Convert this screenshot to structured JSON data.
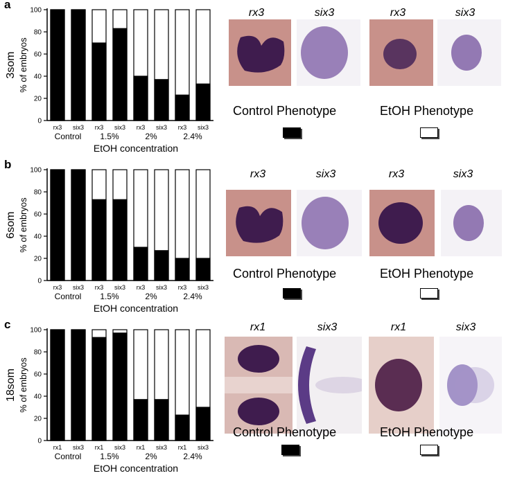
{
  "panels": [
    {
      "letter": "a",
      "stage": "3som",
      "chart_data": {
        "type": "bar",
        "stacked": true,
        "categories": [
          "rx3",
          "six3",
          "rx3",
          "six3",
          "rx3",
          "six3",
          "rx3",
          "six3"
        ],
        "groups": [
          "Control",
          "1.5%",
          "2%",
          "2.4%"
        ],
        "series": [
          {
            "name": "Control Phenotype",
            "color": "#000000",
            "values": [
              100,
              100,
              70,
              83,
              40,
              37,
              23,
              33
            ]
          },
          {
            "name": "EtOH Phenotype",
            "color": "#ffffff",
            "values": [
              0,
              0,
              30,
              17,
              60,
              63,
              77,
              67
            ]
          }
        ],
        "ylabel": "% of embryos",
        "xlabel": "EtOH concentration",
        "ylim": [
          0,
          100
        ],
        "yticks": [
          0,
          20,
          40,
          60,
          80,
          100
        ]
      },
      "images": {
        "control": [
          {
            "gene": "rx3",
            "kind": "rx-heart"
          },
          {
            "gene": "six3",
            "kind": "six3-oval"
          }
        ],
        "etoh": [
          {
            "gene": "rx3",
            "kind": "rx-small"
          },
          {
            "gene": "six3",
            "kind": "six3-small"
          }
        ]
      },
      "phenotypes": {
        "control": "Control Phenotype",
        "etoh": "EtOH Phenotype"
      }
    },
    {
      "letter": "b",
      "stage": "6som",
      "chart_data": {
        "type": "bar",
        "stacked": true,
        "categories": [
          "rx3",
          "six3",
          "rx3",
          "six3",
          "rx3",
          "six3",
          "rx3",
          "six3"
        ],
        "groups": [
          "Control",
          "1.5%",
          "2%",
          "2.4%"
        ],
        "series": [
          {
            "name": "Control Phenotype",
            "color": "#000000",
            "values": [
              100,
              100,
              73,
              73,
              30,
              27,
              20,
              20
            ]
          },
          {
            "name": "EtOH Phenotype",
            "color": "#ffffff",
            "values": [
              0,
              0,
              27,
              27,
              70,
              73,
              80,
              80
            ]
          }
        ],
        "ylabel": "% of embryos",
        "xlabel": "EtOH concentration",
        "ylim": [
          0,
          100
        ],
        "yticks": [
          0,
          20,
          40,
          60,
          80,
          100
        ]
      },
      "images": {
        "control": [
          {
            "gene": "rx3",
            "kind": "rx-heart"
          },
          {
            "gene": "six3",
            "kind": "six3-oval"
          }
        ],
        "etoh": [
          {
            "gene": "rx3",
            "kind": "rx-round"
          },
          {
            "gene": "six3",
            "kind": "six3-small"
          }
        ]
      },
      "phenotypes": {
        "control": "Control Phenotype",
        "etoh": "EtOH Phenotype"
      }
    },
    {
      "letter": "c",
      "stage": "18som",
      "chart_data": {
        "type": "bar",
        "stacked": true,
        "categories": [
          "rx1",
          "six3",
          "rx1",
          "six3",
          "rx1",
          "six3",
          "rx1",
          "six3"
        ],
        "groups": [
          "Control",
          "1.5%",
          "2%",
          "2.4%"
        ],
        "series": [
          {
            "name": "Control Phenotype",
            "color": "#000000",
            "values": [
              100,
              100,
              93,
              97,
              37,
              37,
              23,
              30
            ]
          },
          {
            "name": "EtOH Phenotype",
            "color": "#ffffff",
            "values": [
              0,
              0,
              7,
              3,
              63,
              63,
              77,
              70
            ]
          }
        ],
        "ylabel": "% of embryos",
        "xlabel": "EtOH concentration",
        "ylim": [
          0,
          100
        ],
        "yticks": [
          0,
          20,
          40,
          60,
          80,
          100
        ]
      },
      "images": {
        "control": [
          {
            "gene": "rx1",
            "kind": "rx-eyes"
          },
          {
            "gene": "six3",
            "kind": "six3-crescent"
          }
        ],
        "etoh": [
          {
            "gene": "rx1",
            "kind": "rx-fused"
          },
          {
            "gene": "six3",
            "kind": "six3-diffuse"
          }
        ]
      },
      "phenotypes": {
        "control": "Control Phenotype",
        "etoh": "EtOH Phenotype"
      }
    }
  ]
}
